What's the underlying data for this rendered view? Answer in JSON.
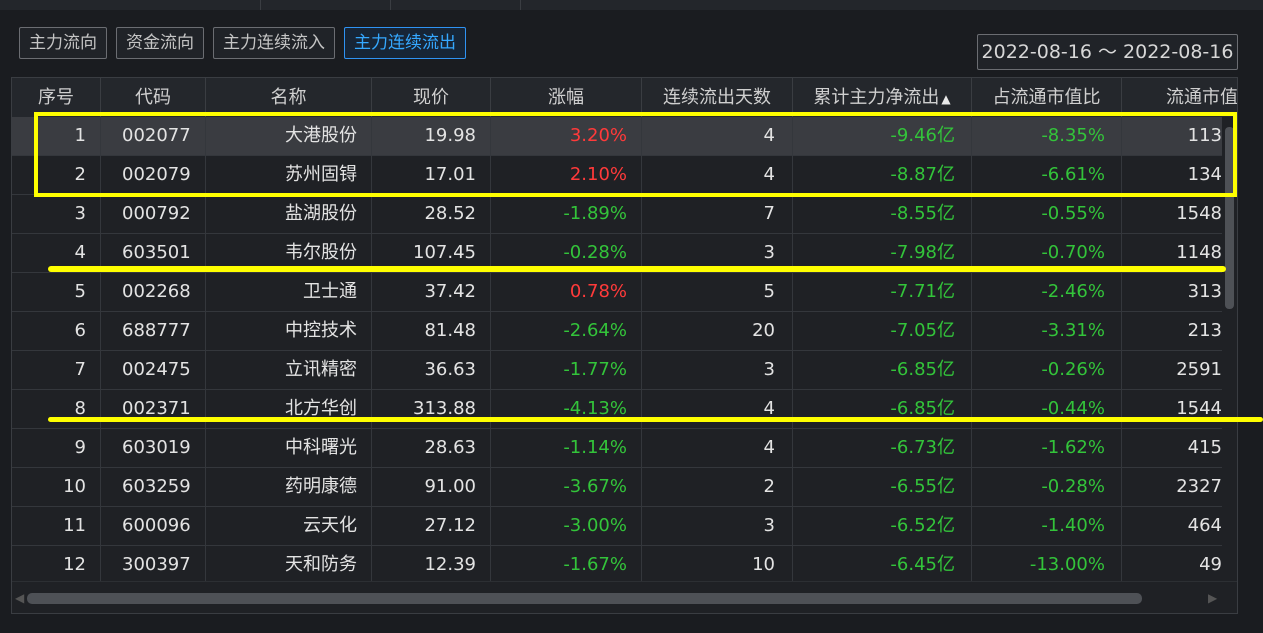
{
  "tabs": [
    {
      "label": "主力流向",
      "active": false
    },
    {
      "label": "资金流向",
      "active": false
    },
    {
      "label": "主力连续流入",
      "active": false
    },
    {
      "label": "主力连续流出",
      "active": true
    }
  ],
  "date_range": "2022-08-16 ～ 2022-08-16",
  "columns": [
    "序号",
    "代码",
    "名称",
    "现价",
    "涨幅",
    "连续流出天数",
    "累计主力净流出",
    "占流通市值比",
    "流通市值"
  ],
  "sort": {
    "column": "累计主力净流出",
    "icon": "sort-ascending-icon"
  },
  "colors": {
    "up": "#ff3a3a",
    "down": "#33c43a",
    "accent": "#2f93f3",
    "highlight": "#ffff00"
  },
  "rows": [
    {
      "idx": "1",
      "code": "002077",
      "name": "大港股份",
      "price": "19.98",
      "chg": "3.20%",
      "dir": "up",
      "days": "4",
      "net": "-9.46亿",
      "ratio": "-8.35%",
      "mcap": "113",
      "selected": true
    },
    {
      "idx": "2",
      "code": "002079",
      "name": "苏州固锝",
      "price": "17.01",
      "chg": "2.10%",
      "dir": "up",
      "days": "4",
      "net": "-8.87亿",
      "ratio": "-6.61%",
      "mcap": "134",
      "selected": false
    },
    {
      "idx": "3",
      "code": "000792",
      "name": "盐湖股份",
      "price": "28.52",
      "chg": "-1.89%",
      "dir": "down",
      "days": "7",
      "net": "-8.55亿",
      "ratio": "-0.55%",
      "mcap": "1548",
      "selected": false
    },
    {
      "idx": "4",
      "code": "603501",
      "name": "韦尔股份",
      "price": "107.45",
      "chg": "-0.28%",
      "dir": "down",
      "days": "3",
      "net": "-7.98亿",
      "ratio": "-0.70%",
      "mcap": "1148",
      "selected": false
    },
    {
      "idx": "5",
      "code": "002268",
      "name": "卫士通",
      "price": "37.42",
      "chg": "0.78%",
      "dir": "up",
      "days": "5",
      "net": "-7.71亿",
      "ratio": "-2.46%",
      "mcap": "313",
      "selected": false
    },
    {
      "idx": "6",
      "code": "688777",
      "name": "中控技术",
      "price": "81.48",
      "chg": "-2.64%",
      "dir": "down",
      "days": "20",
      "net": "-7.05亿",
      "ratio": "-3.31%",
      "mcap": "213",
      "selected": false
    },
    {
      "idx": "7",
      "code": "002475",
      "name": "立讯精密",
      "price": "36.63",
      "chg": "-1.77%",
      "dir": "down",
      "days": "3",
      "net": "-6.85亿",
      "ratio": "-0.26%",
      "mcap": "2591",
      "selected": false
    },
    {
      "idx": "8",
      "code": "002371",
      "name": "北方华创",
      "price": "313.88",
      "chg": "-4.13%",
      "dir": "down",
      "days": "4",
      "net": "-6.85亿",
      "ratio": "-0.44%",
      "mcap": "1544",
      "selected": false
    },
    {
      "idx": "9",
      "code": "603019",
      "name": "中科曙光",
      "price": "28.63",
      "chg": "-1.14%",
      "dir": "down",
      "days": "4",
      "net": "-6.73亿",
      "ratio": "-1.62%",
      "mcap": "415",
      "selected": false
    },
    {
      "idx": "10",
      "code": "603259",
      "name": "药明康德",
      "price": "91.00",
      "chg": "-3.67%",
      "dir": "down",
      "days": "2",
      "net": "-6.55亿",
      "ratio": "-0.28%",
      "mcap": "2327",
      "selected": false
    },
    {
      "idx": "11",
      "code": "600096",
      "name": "云天化",
      "price": "27.12",
      "chg": "-3.00%",
      "dir": "down",
      "days": "3",
      "net": "-6.52亿",
      "ratio": "-1.40%",
      "mcap": "464",
      "selected": false
    },
    {
      "idx": "12",
      "code": "300397",
      "name": "天和防务",
      "price": "12.39",
      "chg": "-1.67%",
      "dir": "down",
      "days": "10",
      "net": "-6.45亿",
      "ratio": "-13.00%",
      "mcap": "49",
      "selected": false
    }
  ]
}
